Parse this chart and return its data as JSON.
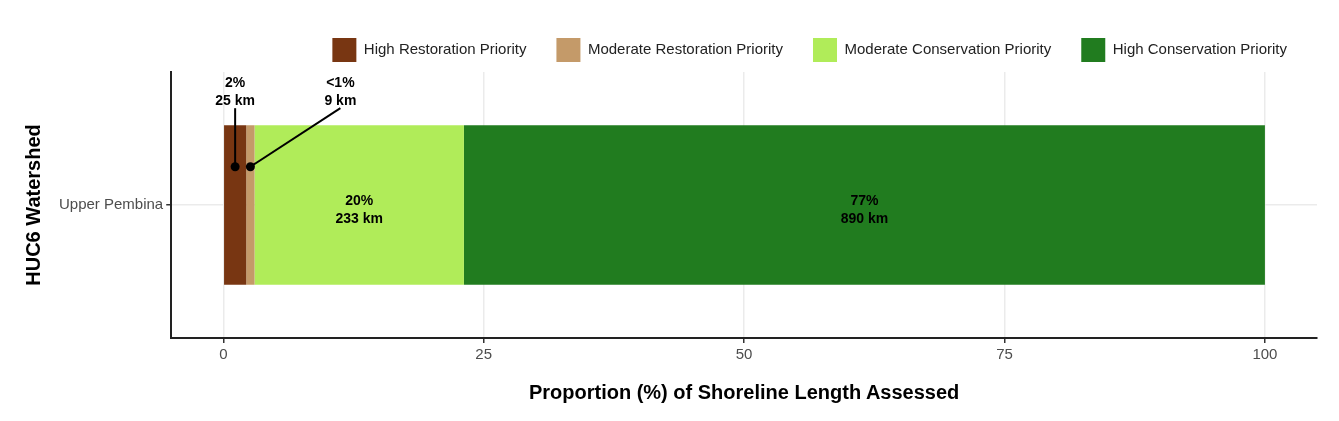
{
  "chart_data": {
    "type": "bar",
    "orientation": "horizontal",
    "stacked": true,
    "categories": [
      "Upper Pembina"
    ],
    "series": [
      {
        "name": "High Restoration Priority",
        "color": "#783612",
        "values": [
          2.2
        ],
        "value_labels": [
          "2%\n25 km"
        ]
      },
      {
        "name": "Moderate Restoration Priority",
        "color": "#c49a69",
        "values": [
          0.8
        ],
        "value_labels": [
          "<1%\n9 km"
        ]
      },
      {
        "name": "Moderate Conservation Priority",
        "color": "#b0ec59",
        "values": [
          20.1
        ],
        "value_labels": [
          "20%\n233 km"
        ]
      },
      {
        "name": "High Conservation Priority",
        "color": "#217c1f",
        "values": [
          76.9
        ],
        "value_labels": [
          "77%\n890 km"
        ]
      }
    ],
    "xlim": [
      -5,
      105
    ],
    "xticks": [
      0,
      25,
      50,
      75,
      100
    ],
    "xlabel": "Proportion (%) of Shoreline Length Assessed",
    "ylabel": "HUC6 Watershed",
    "grid": true,
    "legend": "top"
  }
}
